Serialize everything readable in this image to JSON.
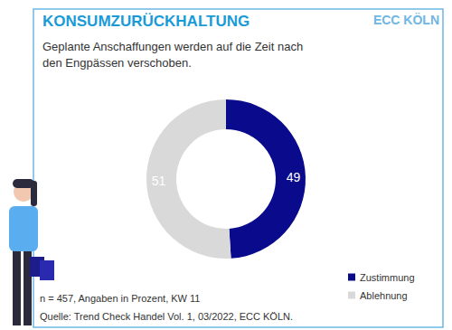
{
  "chart_data": {
    "type": "pie",
    "title": "KONSUMZURÜCKHALTUNG",
    "subtitle": "Geplante Anschaffungen werden auf die Zeit nach den Engpässen verschoben.",
    "categories": [
      "Zustimmung",
      "Ablehnung"
    ],
    "values": [
      49,
      51
    ],
    "colors": [
      "#0a0a8c",
      "#d9d9d9"
    ],
    "data_labels": true,
    "legend": "bottom-right",
    "annotations": [
      "ECC KÖLN",
      "n = 457, Angaben in Prozent, KW 11",
      "Quelle: Trend Check Handel Vol. 1, 03/2022, ECC KÖLN."
    ]
  }
}
